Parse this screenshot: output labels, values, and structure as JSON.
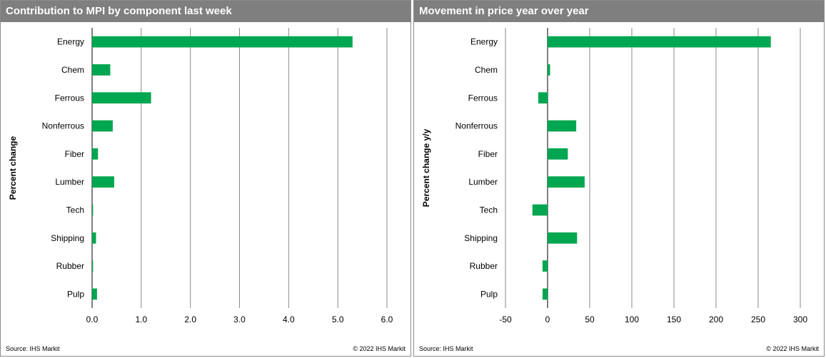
{
  "panels": [
    {
      "header": "Contribution to MPI by component last week",
      "source": "Source:  IHS Markit",
      "copyright": "© 2022  IHS Markit"
    },
    {
      "header": "Movement in price year over year",
      "source": "Source:  IHS Markit",
      "copyright": "© 2022  IHS Markit"
    }
  ],
  "chart_data": [
    {
      "type": "bar",
      "orientation": "horizontal",
      "title": "Contribution to MPI by component last week",
      "ylabel": "Percent change",
      "xlabel": "",
      "categories": [
        "Energy",
        "Chem",
        "Ferrous",
        "Nonferrous",
        "Fiber",
        "Lumber",
        "Tech",
        "Shipping",
        "Rubber",
        "Pulp"
      ],
      "values": [
        5.3,
        0.37,
        1.2,
        0.42,
        0.12,
        0.45,
        0.02,
        0.08,
        0.02,
        0.1
      ],
      "xlim": [
        0,
        6
      ],
      "xticks": [
        0,
        1,
        2,
        3,
        4,
        5,
        6
      ],
      "xtick_labels": [
        "0.0",
        "1.0",
        "2.0",
        "3.0",
        "4.0",
        "5.0",
        "6.0"
      ],
      "grid": "vertical",
      "color": "#00a650"
    },
    {
      "type": "bar",
      "orientation": "horizontal",
      "title": "Movement in price year over year",
      "ylabel": "Percent change y/y",
      "xlabel": "",
      "categories": [
        "Energy",
        "Chem",
        "Ferrous",
        "Nonferrous",
        "Fiber",
        "Lumber",
        "Tech",
        "Shipping",
        "Rubber",
        "Pulp"
      ],
      "values": [
        265,
        3,
        -11,
        34,
        24,
        44,
        -18,
        35,
        -6,
        -6
      ],
      "xlim": [
        -50,
        300
      ],
      "xticks": [
        -50,
        0,
        50,
        100,
        150,
        200,
        250,
        300
      ],
      "xtick_labels": [
        "-50",
        "0",
        "50",
        "100",
        "150",
        "200",
        "250",
        "300"
      ],
      "grid": "vertical",
      "color": "#00a650"
    }
  ]
}
